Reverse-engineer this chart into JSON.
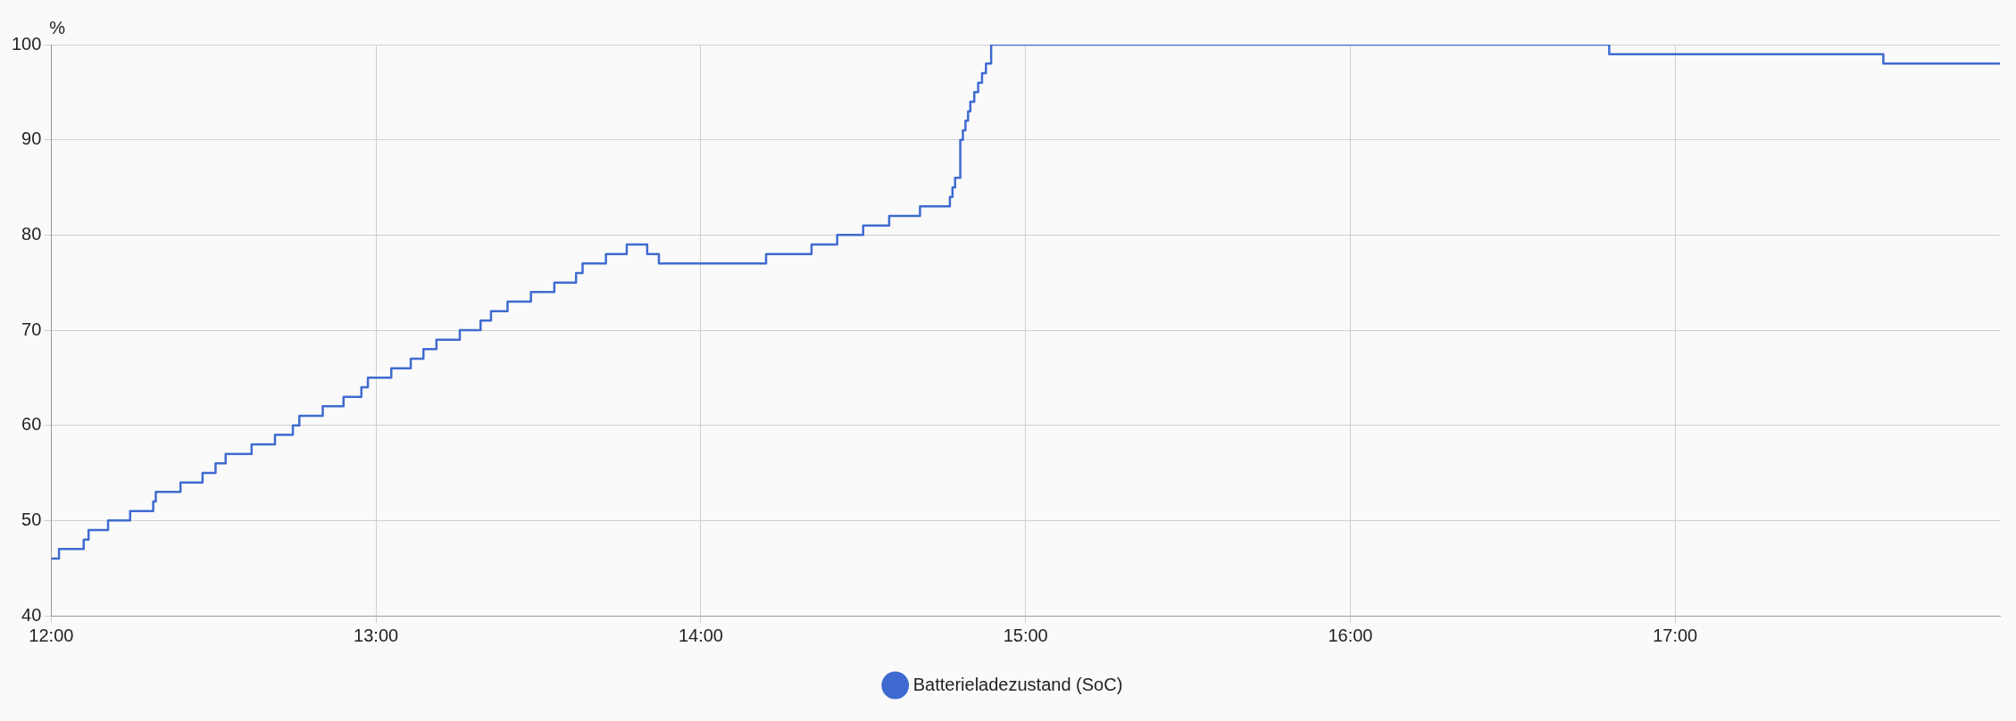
{
  "chart_data": {
    "type": "step",
    "ylabel": "%",
    "x": [
      12.0,
      12.024,
      12.1,
      12.115,
      12.175,
      12.243,
      12.314,
      12.322,
      12.398,
      12.466,
      12.506,
      12.537,
      12.617,
      12.689,
      12.744,
      12.764,
      12.836,
      12.9,
      12.955,
      12.975,
      13.047,
      13.107,
      13.146,
      13.186,
      13.258,
      13.322,
      13.354,
      13.405,
      13.477,
      13.549,
      13.616,
      13.636,
      13.708,
      13.772,
      13.835,
      13.871,
      14.201,
      14.341,
      14.42,
      14.5,
      14.58,
      14.675,
      14.767,
      14.775,
      14.783,
      14.799,
      14.807,
      14.815,
      14.823,
      14.83,
      14.842,
      14.854,
      14.866,
      14.878,
      14.894,
      16.797,
      17.641,
      18.0
    ],
    "series": [
      {
        "name": "Batterieladezustand (SoC)",
        "color": "#3f6bd0",
        "values": [
          46,
          47,
          48,
          49,
          50,
          51,
          52,
          53,
          54,
          55,
          56,
          57,
          58,
          59,
          60,
          61,
          62,
          63,
          64,
          65,
          66,
          67,
          68,
          69,
          70,
          71,
          72,
          73,
          74,
          75,
          76,
          77,
          78,
          79,
          78,
          77,
          78,
          79,
          80,
          81,
          82,
          83,
          84,
          85,
          86,
          90,
          91,
          92,
          93,
          94,
          95,
          96,
          97,
          98,
          100,
          99,
          98,
          98
        ]
      }
    ],
    "xlim": [
      12,
      18
    ],
    "xticks": [
      {
        "value": 12,
        "label": "12:00"
      },
      {
        "value": 13,
        "label": "13:00"
      },
      {
        "value": 14,
        "label": "14:00"
      },
      {
        "value": 15,
        "label": "15:00"
      },
      {
        "value": 16,
        "label": "16:00"
      },
      {
        "value": 17,
        "label": "17:00"
      }
    ],
    "ylim": [
      40,
      100
    ],
    "yticks": [
      40,
      50,
      60,
      70,
      80,
      90,
      100
    ],
    "grid": true,
    "legend": "bottom",
    "marker": "none",
    "line_style": "solid"
  }
}
